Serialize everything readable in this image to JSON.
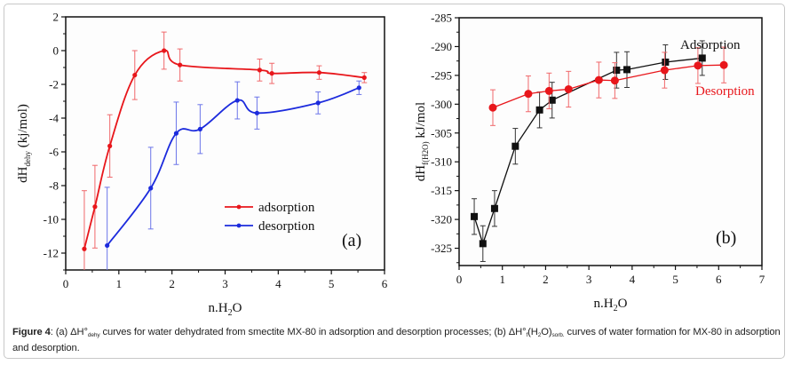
{
  "caption": {
    "figure_label": "Figure 4",
    "part_a": ": (a) ΔH°",
    "part_a_sub": "dehy",
    "part_a_rest": " curves for water dehydrated from smectite MX-80 in adsorption and desorption processes; (b) ΔH°",
    "part_b_sub1": "f",
    "part_b_mid": "(H",
    "part_b_sub2": "2",
    "part_b_mid2": "O)",
    "part_b_sub3": "sorb.",
    "part_b_rest": " curves of water formation for MX-80 in adsorption and desorption."
  },
  "chart_data": [
    {
      "type": "line",
      "panel_label": "(a)",
      "title": "",
      "xlabel": "n.H2O",
      "ylabel": "dHdehy (kj/mol)",
      "xlim": [
        0,
        6
      ],
      "ylim": [
        -13,
        2
      ],
      "xticks": [
        0,
        1,
        2,
        3,
        4,
        5,
        6
      ],
      "yticks": [
        2,
        0,
        -2,
        -4,
        -6,
        -8,
        -10,
        -12
      ],
      "grid": false,
      "legend_position": "bottom-right",
      "series": [
        {
          "name": "adsorption",
          "color": "#e8161b",
          "smooth": true,
          "x": [
            0.35,
            0.55,
            0.83,
            1.3,
            1.85,
            2.15,
            3.65,
            3.88,
            4.77,
            5.62
          ],
          "y": [
            -11.75,
            -9.25,
            -5.65,
            -1.45,
            0.0,
            -0.85,
            -1.15,
            -1.35,
            -1.3,
            -1.6
          ],
          "err": [
            3.45,
            2.45,
            1.85,
            1.45,
            1.1,
            0.95,
            0.65,
            0.6,
            0.4,
            0.3
          ]
        },
        {
          "name": "desorption",
          "color": "#1c2bdd",
          "smooth": true,
          "x": [
            0.78,
            1.6,
            2.08,
            2.53,
            3.23,
            3.6,
            4.75,
            5.52
          ],
          "y": [
            -11.55,
            -8.15,
            -4.9,
            -4.65,
            -2.95,
            -3.7,
            -3.1,
            -2.2
          ],
          "err": [
            3.45,
            2.42,
            1.85,
            1.45,
            1.1,
            0.95,
            0.65,
            0.4
          ]
        }
      ]
    },
    {
      "type": "line",
      "panel_label": "(b)",
      "title": "",
      "xlabel": "n.H2O",
      "ylabel": "dHf(H2O) kJ/mol",
      "xlim": [
        0,
        7
      ],
      "ylim": [
        -328,
        -285
      ],
      "xticks": [
        0,
        1,
        2,
        3,
        4,
        5,
        6,
        7
      ],
      "yticks": [
        -285,
        -290,
        -295,
        -300,
        -305,
        -310,
        -315,
        -320,
        -325
      ],
      "grid": false,
      "legend_position": "top-right",
      "series": [
        {
          "name": "Adsorption",
          "color": "#111111",
          "marker": "square",
          "x": [
            0.35,
            0.55,
            0.82,
            1.3,
            1.86,
            2.15,
            3.64,
            3.88,
            4.77,
            5.62
          ],
          "y": [
            -319.5,
            -324.2,
            -318.1,
            -307.3,
            -301.0,
            -299.3,
            -294.1,
            -294.0,
            -292.7,
            -292.0
          ],
          "err": [
            3.1,
            3.1,
            3.1,
            3.1,
            3.1,
            3.1,
            3.1,
            3.1,
            3.0,
            3.0
          ]
        },
        {
          "name": "Desorption",
          "color": "#e8161b",
          "marker": "circle",
          "x": [
            0.78,
            1.6,
            2.08,
            2.53,
            3.23,
            3.6,
            4.75,
            5.52,
            6.12
          ],
          "y": [
            -300.6,
            -298.2,
            -297.7,
            -297.4,
            -295.8,
            -295.9,
            -294.1,
            -293.3,
            -293.2
          ],
          "err": [
            3.1,
            3.1,
            3.1,
            3.1,
            3.1,
            3.1,
            3.1,
            3.1,
            3.1
          ]
        }
      ]
    }
  ]
}
